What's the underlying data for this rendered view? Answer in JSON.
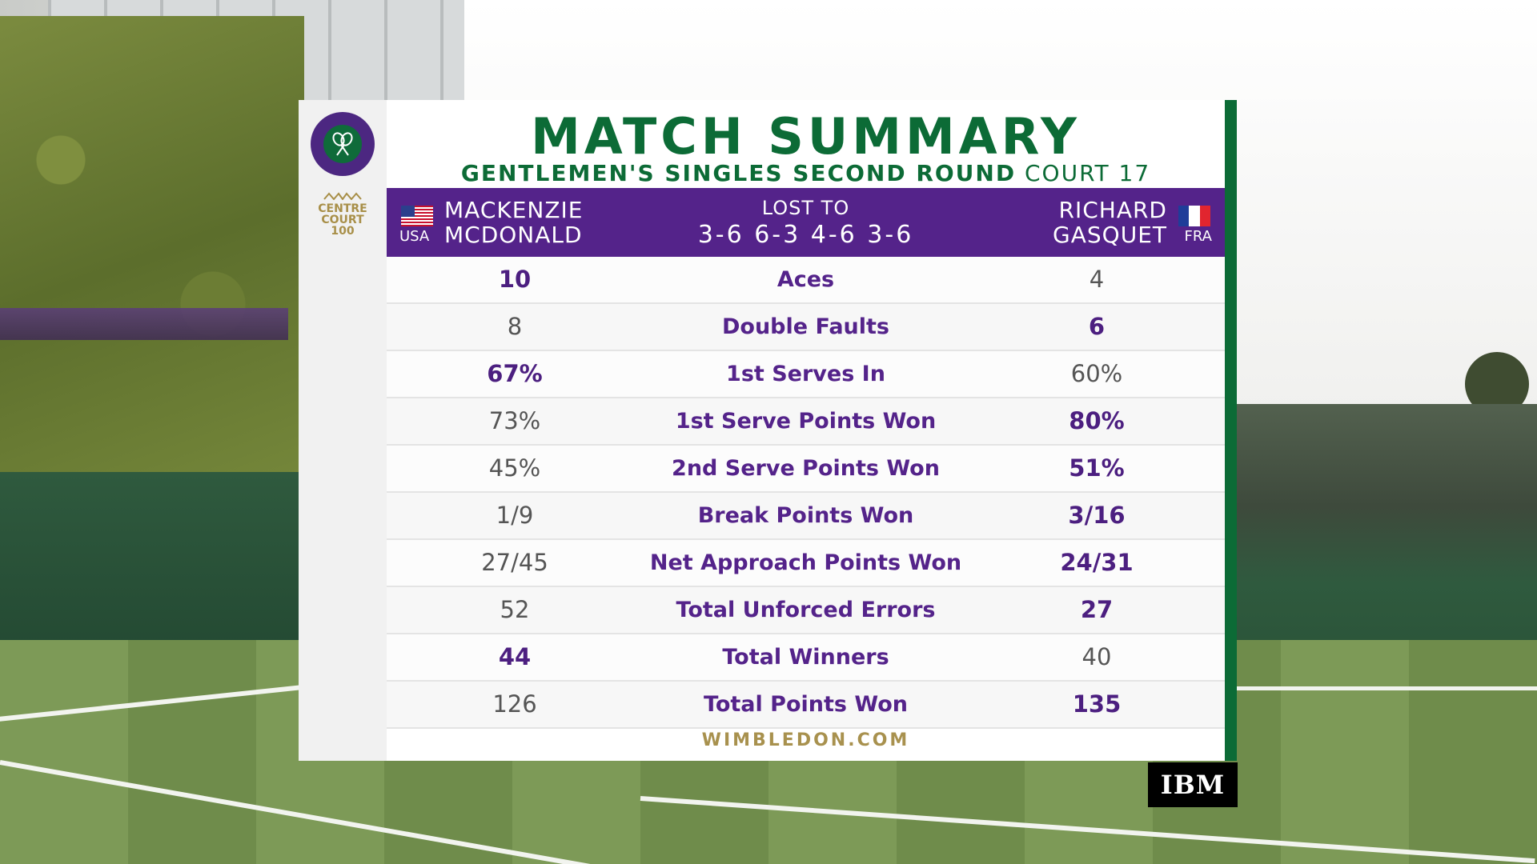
{
  "title": "MATCH SUMMARY",
  "subtitle": {
    "round": "GENTLEMEN'S SINGLES SECOND ROUND",
    "court": "COURT 17"
  },
  "logos": {
    "centre_court_line1": "CENTRE",
    "centre_court_line2": "COURT",
    "centre_court_line3": "100"
  },
  "player_left": {
    "first": "MACKENZIE",
    "last": "MCDONALD",
    "country": "USA"
  },
  "player_right": {
    "first": "RICHARD",
    "last": "GASQUET",
    "country": "FRA"
  },
  "result": {
    "label": "LOST TO",
    "score": "3-6 6-3 4-6 3-6"
  },
  "stats": [
    {
      "label": "Aces",
      "left": "10",
      "right": "4",
      "lead": "left"
    },
    {
      "label": "Double Faults",
      "left": "8",
      "right": "6",
      "lead": "right"
    },
    {
      "label": "1st Serves In",
      "left": "67%",
      "right": "60%",
      "lead": "left"
    },
    {
      "label": "1st Serve Points Won",
      "left": "73%",
      "right": "80%",
      "lead": "right"
    },
    {
      "label": "2nd Serve Points Won",
      "left": "45%",
      "right": "51%",
      "lead": "right"
    },
    {
      "label": "Break Points Won",
      "left": "1/9",
      "right": "3/16",
      "lead": "right"
    },
    {
      "label": "Net Approach Points Won",
      "left": "27/45",
      "right": "24/31",
      "lead": "right"
    },
    {
      "label": "Total Unforced Errors",
      "left": "52",
      "right": "27",
      "lead": "right"
    },
    {
      "label": "Total Winners",
      "left": "44",
      "right": "40",
      "lead": "left"
    },
    {
      "label": "Total Points Won",
      "left": "126",
      "right": "135",
      "lead": "right"
    }
  ],
  "footer": "WIMBLEDON.COM",
  "sponsor": "IBM",
  "colors": {
    "purple": "#54238a",
    "green": "#0c6b36",
    "gold": "#a8914e"
  }
}
